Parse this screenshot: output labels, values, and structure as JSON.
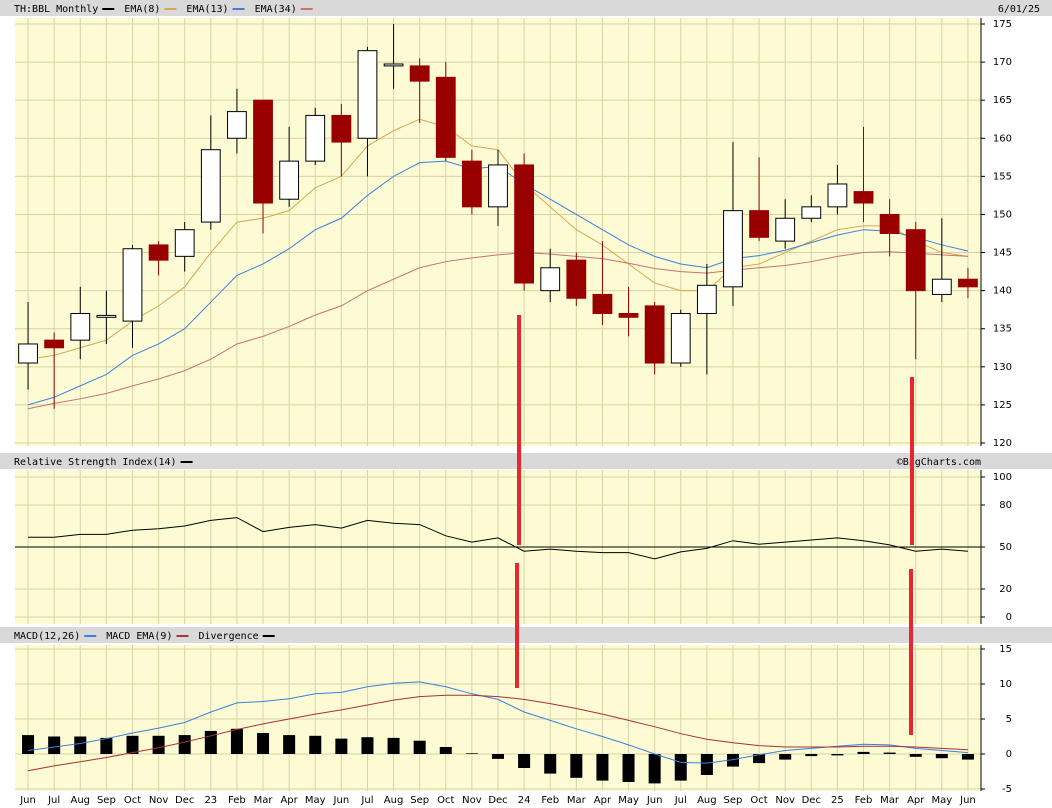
{
  "chart_data": [
    {
      "type": "candlestick",
      "title": "TH:BBL Monthly",
      "color": "#000000",
      "date": "6/01/25",
      "up_color": "#ffffff",
      "down_color": "#990000",
      "open": [
        130.5,
        133.5,
        133.5,
        136.5,
        136,
        146,
        144.5,
        149,
        160,
        165,
        152,
        157,
        163,
        160,
        169.5,
        169.5,
        168,
        157,
        151,
        156.5,
        140,
        144,
        139.5,
        137,
        138,
        130.5,
        137,
        140.5,
        150.5,
        146.5,
        149.5,
        151,
        153,
        150,
        148,
        139.5,
        141.5
      ],
      "high": [
        138.5,
        134.5,
        140.5,
        140,
        146,
        146.5,
        149,
        163,
        166.5,
        165,
        161.5,
        164,
        164.5,
        172,
        175,
        170.5,
        170,
        158.5,
        158.5,
        158,
        145.5,
        145,
        146.5,
        140.5,
        138.5,
        137.5,
        143.5,
        159.5,
        157.5,
        152,
        152.5,
        156.5,
        161.5,
        152,
        149,
        149.5,
        143
      ],
      "low": [
        127,
        124.5,
        131,
        133,
        132.5,
        142,
        142.5,
        148,
        158,
        147.5,
        151,
        156.5,
        155,
        155,
        166.5,
        162,
        157,
        150,
        148.5,
        140,
        138.5,
        138,
        135.5,
        134,
        129,
        130,
        129,
        138,
        146.5,
        145.5,
        149,
        150,
        149,
        144.5,
        131,
        138.5,
        139
      ],
      "close": [
        133,
        132.5,
        137,
        136.75,
        145.5,
        144,
        148,
        158.5,
        163.5,
        151.5,
        157,
        163,
        159.5,
        171.5,
        169.75,
        167.5,
        157.5,
        151,
        156.5,
        141,
        143,
        139,
        137,
        136.5,
        130.5,
        137,
        140.7,
        150.5,
        147,
        149.5,
        151,
        154,
        151.5,
        147.5,
        140,
        141.5,
        140.5
      ],
      "series": [
        {
          "name": "EMA(8)",
          "color": "#d9a655",
          "values": [
            131,
            131.5,
            132.5,
            133.5,
            136,
            138,
            140.5,
            145,
            149,
            149.5,
            150.5,
            153.5,
            155,
            159,
            161,
            162.5,
            161.5,
            159,
            158.5,
            154,
            151,
            148,
            146,
            143.5,
            141,
            140,
            140,
            143,
            143.5,
            145,
            146.5,
            148,
            148.5,
            148.5,
            146.5,
            145,
            144.5
          ]
        },
        {
          "name": "EMA(13)",
          "color": "#3a80e0",
          "values": [
            125,
            126,
            127.5,
            129,
            131.5,
            133,
            135,
            138.5,
            142,
            143.5,
            145.5,
            148,
            149.5,
            152.5,
            155,
            156.8,
            157,
            156,
            156.3,
            154,
            152,
            150,
            148,
            146,
            144.5,
            143.5,
            143,
            144.2,
            144.6,
            145.3,
            146.3,
            147.3,
            148,
            147.8,
            147,
            146,
            145.2
          ]
        },
        {
          "name": "EMA(34)",
          "color": "#c87272",
          "values": [
            124.5,
            125.2,
            125.8,
            126.5,
            127.5,
            128.4,
            129.5,
            131,
            133,
            134,
            135.3,
            136.8,
            138,
            140,
            141.5,
            143,
            143.8,
            144.3,
            144.7,
            145,
            144.8,
            144.5,
            144.2,
            143.6,
            142.9,
            142.5,
            142.3,
            142.7,
            143,
            143.3,
            143.8,
            144.5,
            145,
            145.1,
            144.9,
            144.7,
            144.5
          ]
        }
      ],
      "ylim": [
        120,
        175
      ],
      "yticks": [
        120,
        125,
        130,
        135,
        140,
        145,
        150,
        155,
        160,
        165,
        170,
        175
      ],
      "grid": true
    },
    {
      "type": "line",
      "title": "Relative Strength Index(14)",
      "source": "©BigCharts.com",
      "color": "#000000",
      "values": [
        57,
        57,
        59,
        59,
        62,
        63,
        65,
        69,
        71,
        61,
        64,
        66,
        63.5,
        69,
        67,
        66,
        58,
        53.5,
        56.5,
        47,
        48.5,
        47,
        46,
        46,
        41.5,
        46.5,
        49,
        54.5,
        52,
        53.5,
        55,
        56.5,
        54.5,
        51.5,
        47,
        48.5,
        47
      ],
      "midline": 50,
      "ylim": [
        0,
        100
      ],
      "yticks": [
        0,
        20,
        50,
        80,
        100
      ],
      "grid": true
    },
    {
      "type": "macd",
      "categories": [
        "Jun",
        "Jul",
        "Aug",
        "Sep",
        "Oct",
        "Nov",
        "Dec",
        "23",
        "Feb",
        "Mar",
        "Apr",
        "May",
        "Jun",
        "Jul",
        "Aug",
        "Sep",
        "Oct",
        "Nov",
        "Dec",
        "24",
        "Feb",
        "Mar",
        "Apr",
        "May",
        "Jun",
        "Jul",
        "Aug",
        "Sep",
        "Oct",
        "Nov",
        "Dec",
        "25",
        "Feb",
        "Mar",
        "Apr",
        "May",
        "Jun"
      ],
      "series": [
        {
          "name": "MACD(12,26)",
          "color": "#3a80e0",
          "values": [
            0.5,
            1,
            1.5,
            2.2,
            3,
            3.7,
            4.5,
            6,
            7.3,
            7.5,
            7.9,
            8.6,
            8.8,
            9.6,
            10.1,
            10.3,
            9.6,
            8.6,
            7.8,
            6,
            4.8,
            3.6,
            2.5,
            1.3,
            0,
            -1.2,
            -1.3,
            -0.8,
            -0.1,
            0.5,
            0.8,
            1.1,
            1.4,
            1.3,
            0.8,
            0.5,
            0.2
          ]
        },
        {
          "name": "MACD EMA(9)",
          "color": "#a83232",
          "values": [
            -2.4,
            -1.7,
            -1.1,
            -0.5,
            0.2,
            0.9,
            1.7,
            2.6,
            3.5,
            4.3,
            5,
            5.7,
            6.3,
            7,
            7.7,
            8.2,
            8.4,
            8.4,
            8.2,
            7.8,
            7.2,
            6.5,
            5.7,
            4.8,
            3.9,
            2.9,
            2.1,
            1.6,
            1.2,
            1,
            1,
            1,
            1.1,
            1.1,
            1,
            0.8,
            0.6
          ]
        },
        {
          "name": "Divergence",
          "color": "#000000",
          "kind": "bar",
          "values": [
            2.7,
            2.5,
            2.5,
            2.3,
            2.6,
            2.6,
            2.7,
            3.3,
            3.6,
            3,
            2.7,
            2.6,
            2.2,
            2.4,
            2.3,
            1.9,
            1,
            0.1,
            -0.7,
            -2,
            -2.8,
            -3.4,
            -3.8,
            -4,
            -4.2,
            -3.8,
            -3,
            -1.8,
            -1.3,
            -0.8,
            -0.3,
            -0.2,
            0.3,
            0.2,
            -0.4,
            -0.6,
            -0.8
          ]
        }
      ],
      "ylim": [
        -5,
        15
      ],
      "yticks": [
        -5,
        0,
        5,
        10,
        15
      ],
      "grid": true
    }
  ]
}
